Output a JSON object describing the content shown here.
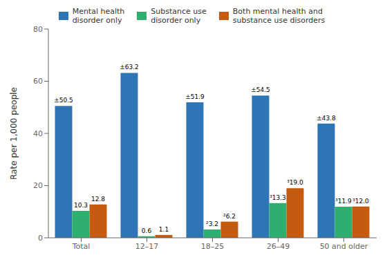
{
  "chart_data": {
    "type": "bar",
    "categories": [
      "Total",
      "12–17",
      "18–25",
      "26–49",
      "50 and older"
    ],
    "series": [
      {
        "name": "Mental health\ndisorder only",
        "color": "#2E75B6",
        "values": [
          50.5,
          63.2,
          51.9,
          54.5,
          43.8
        ],
        "value_labels": [
          "±50.5",
          "±63.2",
          "±51.9",
          "±54.5",
          "±43.8"
        ]
      },
      {
        "name": "Substance use\ndisorder only",
        "color": "#2EAF6F",
        "values": [
          10.3,
          0.6,
          3.2,
          13.3,
          11.9
        ],
        "value_labels": [
          "10.3",
          "0.6",
          "²3.2",
          "³13.3",
          "³11.9"
        ]
      },
      {
        "name": "Both mental health and\nsubstance use disorders",
        "color": "#C55A11",
        "values": [
          12.8,
          1.1,
          6.2,
          19.0,
          12.0
        ],
        "value_labels": [
          "12.8",
          "1.1",
          "²6.2",
          "³19.0",
          "³12.0"
        ]
      }
    ],
    "ylabel": "Rate per 1,000 people",
    "ylim": [
      0,
      80
    ],
    "yticks": [
      0,
      20,
      40,
      60,
      80
    ],
    "data_labels": true,
    "legend": "top"
  }
}
